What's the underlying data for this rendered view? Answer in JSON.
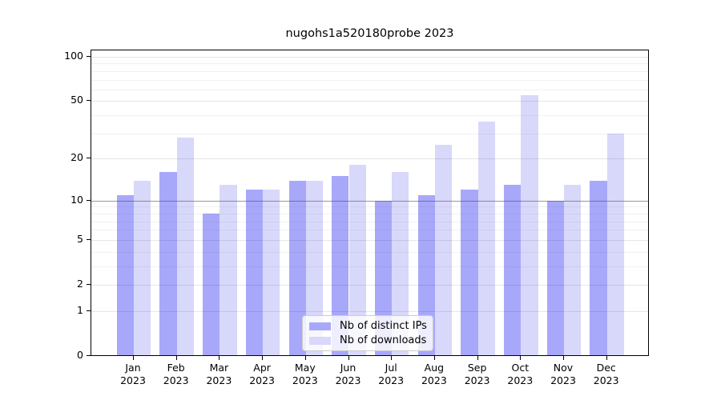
{
  "title": "nugohs1a520180probe 2023",
  "colors": {
    "bar_distinct_ips": "#a8a8fa",
    "bar_downloads": "#d8d8fa",
    "axis": "#000000",
    "legend_border": "#cccccc"
  },
  "legend": {
    "items": [
      {
        "label": "Nb of distinct IPs",
        "swatch": "bar_distinct_ips"
      },
      {
        "label": "Nb of downloads",
        "swatch": "bar_downloads"
      }
    ]
  },
  "chart_data": {
    "type": "bar",
    "title": "nugohs1a520180probe 2023",
    "categories": [
      "Jan",
      "Feb",
      "Mar",
      "Apr",
      "May",
      "Jun",
      "Jul",
      "Aug",
      "Sep",
      "Oct",
      "Nov",
      "Dec"
    ],
    "year": "2023",
    "series": [
      {
        "name": "Nb of distinct IPs",
        "values": [
          11,
          16,
          8,
          12,
          14,
          15,
          10,
          11,
          12,
          13,
          10,
          14
        ]
      },
      {
        "name": "Nb of downloads",
        "values": [
          14,
          28,
          13,
          12,
          14,
          18,
          16,
          25,
          36,
          55,
          13,
          30
        ]
      }
    ],
    "xlabel": "",
    "ylabel": "",
    "y_scale": "log1p",
    "ylim": [
      0,
      110
    ],
    "y_ticks": [
      100,
      50,
      20,
      10,
      5,
      2,
      1,
      0
    ],
    "y_minor_gridlines": [
      3,
      4,
      6,
      7,
      8,
      9,
      30,
      40,
      60,
      70,
      80,
      90
    ],
    "y_dark_line_at": 10,
    "grid": "on",
    "legend_position": "lower center"
  }
}
